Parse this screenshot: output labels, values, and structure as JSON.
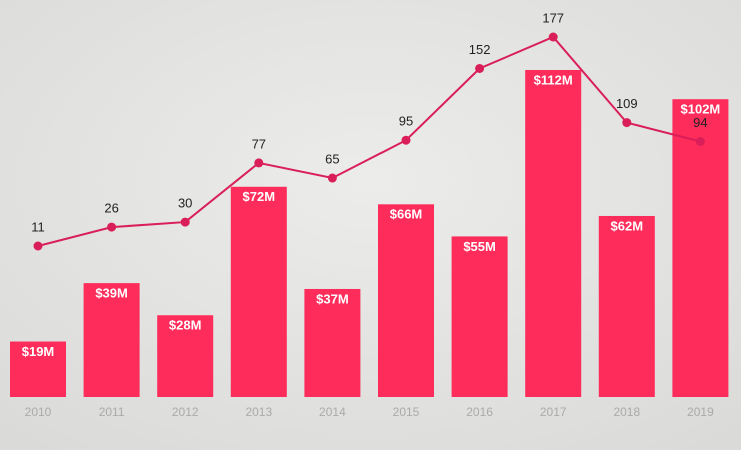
{
  "chart_data": {
    "type": "combo",
    "categories": [
      "2010",
      "2011",
      "2012",
      "2013",
      "2014",
      "2015",
      "2016",
      "2017",
      "2018",
      "2019"
    ],
    "series": [
      {
        "type": "bar",
        "color": "#fe2c5b",
        "values": [
          19,
          39,
          28,
          72,
          37,
          66,
          55,
          112,
          62,
          102
        ],
        "value_labels": [
          "$19M",
          "$39M",
          "$28M",
          "$72M",
          "$37M",
          "$66M",
          "$55M",
          "$112M",
          "$62M",
          "$102M"
        ]
      },
      {
        "type": "line",
        "color": "#d91e59",
        "values": [
          11,
          26,
          30,
          77,
          65,
          95,
          152,
          177,
          109,
          94
        ]
      }
    ]
  }
}
